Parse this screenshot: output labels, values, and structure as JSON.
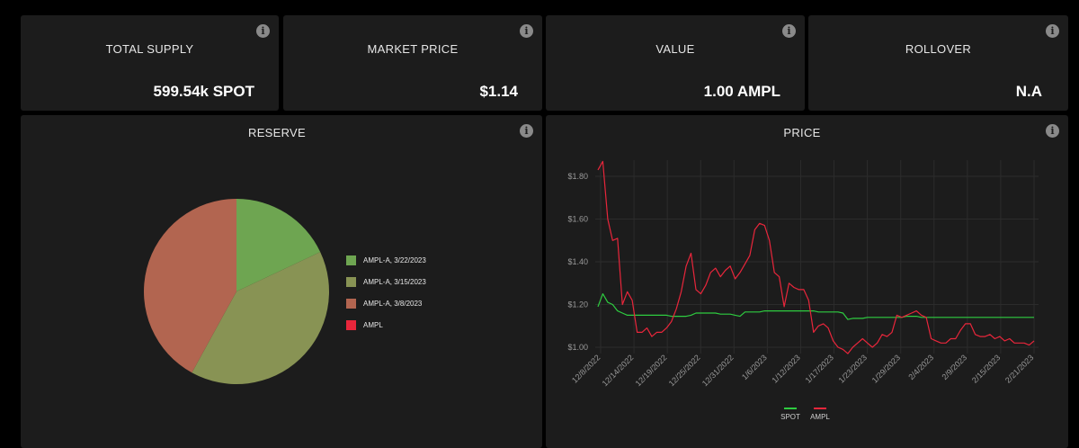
{
  "stats": [
    {
      "title": "TOTAL SUPPLY",
      "value": "599.54k SPOT"
    },
    {
      "title": "MARKET PRICE",
      "value": "$1.14"
    },
    {
      "title": "VALUE",
      "value": "1.00 AMPL"
    },
    {
      "title": "ROLLOVER",
      "value": "N.A"
    }
  ],
  "icons": {
    "info": "info-icon",
    "info_glyph": "i"
  },
  "reserve": {
    "title": "RESERVE",
    "chart_data": {
      "type": "pie",
      "slices": [
        {
          "label": "AMPL-A, 3/22/2023",
          "value": 18,
          "color": "#6ea551"
        },
        {
          "label": "AMPL-A, 3/15/2023",
          "value": 40,
          "color": "#889354"
        },
        {
          "label": "AMPL-A, 3/8/2023",
          "value": 42,
          "color": "#b26550"
        },
        {
          "label": "AMPL",
          "value": 0,
          "color": "#e8263b"
        }
      ],
      "legend_position": "right"
    }
  },
  "price": {
    "title": "PRICE",
    "chart_data": {
      "type": "line",
      "y_ticks": [
        "$1.80",
        "$1.60",
        "$1.40",
        "$1.20",
        "$1.00"
      ],
      "ylim": [
        0.97,
        1.88
      ],
      "x_ticks": [
        "12/8/2022",
        "12/14/2022",
        "12/19/2022",
        "12/25/2022",
        "12/31/2022",
        "1/6/2023",
        "1/12/2023",
        "1/17/2023",
        "1/23/2023",
        "1/29/2023",
        "2/4/2023",
        "2/9/2023",
        "2/15/2023",
        "2/21/2023"
      ],
      "grid": true,
      "legend_position": "bottom",
      "series": [
        {
          "name": "SPOT",
          "color": "#2ecc40",
          "values": [
            1.19,
            1.25,
            1.21,
            1.2,
            1.17,
            1.16,
            1.15,
            1.15,
            1.15,
            1.15,
            1.15,
            1.15,
            1.15,
            1.15,
            1.15,
            1.145,
            1.145,
            1.145,
            1.145,
            1.15,
            1.16,
            1.16,
            1.16,
            1.16,
            1.16,
            1.155,
            1.155,
            1.155,
            1.15,
            1.145,
            1.165,
            1.165,
            1.165,
            1.165,
            1.17,
            1.17,
            1.17,
            1.17,
            1.17,
            1.17,
            1.17,
            1.17,
            1.17,
            1.17,
            1.17,
            1.165,
            1.165,
            1.165,
            1.165,
            1.165,
            1.16,
            1.13,
            1.135,
            1.135,
            1.135,
            1.14,
            1.14,
            1.14,
            1.14,
            1.14,
            1.14,
            1.14,
            1.14,
            1.145,
            1.145,
            1.145,
            1.14,
            1.14,
            1.14,
            1.14,
            1.14,
            1.14,
            1.14,
            1.14,
            1.14,
            1.14,
            1.14,
            1.14,
            1.14,
            1.14,
            1.14,
            1.14,
            1.14,
            1.14,
            1.14,
            1.14,
            1.14,
            1.14,
            1.14,
            1.14
          ]
        },
        {
          "name": "AMPL",
          "color": "#e8263b",
          "values": [
            1.83,
            1.87,
            1.6,
            1.5,
            1.51,
            1.2,
            1.26,
            1.22,
            1.07,
            1.07,
            1.09,
            1.05,
            1.07,
            1.07,
            1.09,
            1.12,
            1.18,
            1.26,
            1.38,
            1.44,
            1.27,
            1.25,
            1.29,
            1.35,
            1.37,
            1.33,
            1.36,
            1.38,
            1.32,
            1.35,
            1.39,
            1.43,
            1.55,
            1.58,
            1.57,
            1.5,
            1.35,
            1.33,
            1.19,
            1.3,
            1.28,
            1.27,
            1.27,
            1.22,
            1.07,
            1.1,
            1.11,
            1.09,
            1.03,
            1.0,
            0.99,
            0.97,
            1.0,
            1.02,
            1.04,
            1.02,
            1.0,
            1.02,
            1.06,
            1.05,
            1.07,
            1.15,
            1.14,
            1.15,
            1.16,
            1.17,
            1.15,
            1.14,
            1.04,
            1.03,
            1.02,
            1.02,
            1.04,
            1.04,
            1.08,
            1.11,
            1.11,
            1.06,
            1.05,
            1.05,
            1.06,
            1.04,
            1.05,
            1.03,
            1.04,
            1.02,
            1.02,
            1.02,
            1.01,
            1.03
          ]
        }
      ]
    }
  }
}
